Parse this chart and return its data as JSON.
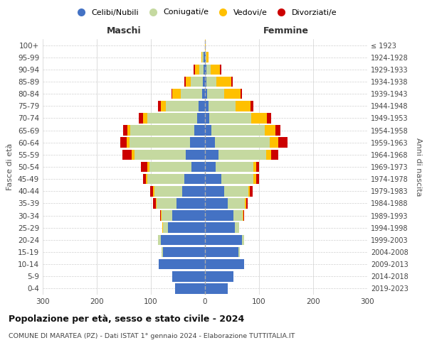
{
  "age_groups": [
    "0-4",
    "5-9",
    "10-14",
    "15-19",
    "20-24",
    "25-29",
    "30-34",
    "35-39",
    "40-44",
    "45-49",
    "50-54",
    "55-59",
    "60-64",
    "65-69",
    "70-74",
    "75-79",
    "80-84",
    "85-89",
    "90-94",
    "95-99",
    "100+"
  ],
  "birth_years": [
    "2019-2023",
    "2014-2018",
    "2009-2013",
    "2004-2008",
    "1999-2003",
    "1994-1998",
    "1989-1993",
    "1984-1988",
    "1979-1983",
    "1974-1978",
    "1969-1973",
    "1964-1968",
    "1959-1963",
    "1954-1958",
    "1949-1953",
    "1944-1948",
    "1939-1943",
    "1934-1938",
    "1929-1933",
    "1924-1928",
    "≤ 1923"
  ],
  "male_celibe": [
    55,
    60,
    85,
    78,
    82,
    68,
    60,
    52,
    42,
    38,
    25,
    35,
    28,
    20,
    15,
    12,
    5,
    4,
    3,
    2,
    0
  ],
  "male_coniugato": [
    0,
    0,
    0,
    2,
    5,
    10,
    20,
    38,
    52,
    68,
    78,
    95,
    112,
    118,
    92,
    60,
    40,
    22,
    8,
    3,
    0
  ],
  "male_vedovo": [
    0,
    0,
    0,
    0,
    0,
    1,
    1,
    1,
    2,
    3,
    3,
    5,
    5,
    5,
    8,
    10,
    15,
    10,
    8,
    2,
    0
  ],
  "male_divorziato": [
    0,
    0,
    0,
    0,
    0,
    0,
    2,
    5,
    5,
    5,
    12,
    18,
    12,
    8,
    8,
    5,
    2,
    2,
    2,
    0,
    0
  ],
  "female_celibe": [
    42,
    52,
    72,
    62,
    68,
    55,
    52,
    42,
    35,
    30,
    20,
    25,
    18,
    12,
    8,
    6,
    4,
    3,
    2,
    1,
    0
  ],
  "female_coniugata": [
    0,
    0,
    0,
    2,
    5,
    8,
    18,
    32,
    45,
    60,
    70,
    88,
    102,
    98,
    78,
    50,
    32,
    18,
    8,
    2,
    0
  ],
  "female_vedova": [
    0,
    0,
    0,
    0,
    0,
    0,
    1,
    2,
    3,
    5,
    5,
    10,
    15,
    20,
    28,
    28,
    30,
    28,
    18,
    4,
    1
  ],
  "female_divorziata": [
    0,
    0,
    0,
    0,
    0,
    0,
    2,
    3,
    5,
    5,
    5,
    12,
    18,
    10,
    8,
    5,
    3,
    2,
    2,
    0,
    0
  ],
  "colors": {
    "celibe": "#4472c4",
    "coniugato": "#c5d9a0",
    "vedovo": "#ffc000",
    "divorziato": "#cc0000"
  },
  "title": "Popolazione per età, sesso e stato civile - 2024",
  "subtitle": "COMUNE DI MARATEA (PZ) - Dati ISTAT 1° gennaio 2024 - Elaborazione TUTTITALIA.IT",
  "xlabel_left": "Maschi",
  "xlabel_right": "Femmine",
  "ylabel": "Fasce di età",
  "ylabel_right": "Anni di nascita",
  "xlim": 300,
  "legend_labels": [
    "Celibi/Nubili",
    "Coniugati/e",
    "Vedovi/e",
    "Divorziati/e"
  ],
  "bg_color": "#ffffff",
  "grid_color": "#d0d0d0"
}
